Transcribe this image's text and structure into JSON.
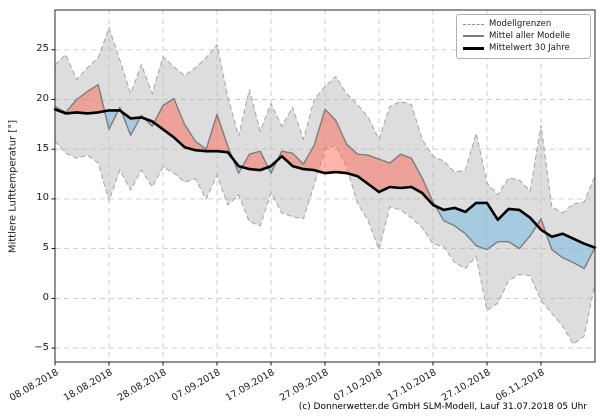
{
  "caption": "(c) Donnerwetter.de GmbH SLM-Modell, Lauf 31.07.2018 05 Uhr",
  "chart_data": {
    "type": "line",
    "title": "",
    "xlabel": "",
    "ylabel": "Mittlere Lufttemperatur [°]",
    "ylim": [
      -6.4,
      29.0
    ],
    "yticks": [
      -5,
      0,
      5,
      10,
      15,
      20,
      25
    ],
    "grid": true,
    "x_range_days": [
      0,
      100
    ],
    "x_ticks": [
      {
        "day": 0,
        "label": "08.08.2018"
      },
      {
        "day": 10,
        "label": "18.08.2018"
      },
      {
        "day": 20,
        "label": "28.08.2018"
      },
      {
        "day": 30,
        "label": "07.09.2018"
      },
      {
        "day": 40,
        "label": "17.09.2018"
      },
      {
        "day": 50,
        "label": "27.09.2018"
      },
      {
        "day": 60,
        "label": "07.10.2018"
      },
      {
        "day": 70,
        "label": "17.10.2018"
      },
      {
        "day": 80,
        "label": "27.10.2018"
      },
      {
        "day": 90,
        "label": "06.11.2018"
      }
    ],
    "days": [
      0,
      2,
      4,
      6,
      8,
      10,
      12,
      14,
      16,
      18,
      20,
      22,
      24,
      26,
      28,
      30,
      32,
      34,
      36,
      38,
      40,
      42,
      44,
      46,
      48,
      50,
      52,
      54,
      56,
      58,
      60,
      62,
      64,
      66,
      68,
      70,
      72,
      74,
      76,
      78,
      80,
      82,
      84,
      86,
      88,
      90,
      92,
      94,
      96,
      98,
      100
    ],
    "series": [
      {
        "name": "Modellgrenzen (obere Grenze)",
        "role": "upper",
        "style": "dashed",
        "values": [
          23.5,
          24.5,
          22.0,
          23.2,
          24.2,
          27.2,
          24.0,
          20.6,
          23.5,
          20.6,
          24.3,
          23.3,
          22.4,
          23.2,
          24.2,
          25.5,
          20.3,
          16.3,
          21.0,
          16.8,
          19.6,
          17.3,
          19.2,
          16.0,
          20.0,
          21.3,
          22.3,
          20.6,
          19.5,
          18.2,
          16.0,
          19.3,
          19.8,
          19.5,
          16.0,
          14.3,
          13.8,
          12.7,
          12.9,
          16.6,
          11.6,
          10.4,
          12.1,
          11.9,
          10.8,
          17.4,
          9.2,
          8.6,
          9.5,
          9.7,
          12.3
        ]
      },
      {
        "name": "Modellgrenzen (untere Grenze)",
        "role": "lower",
        "style": "dashed",
        "values": [
          15.8,
          14.6,
          14.1,
          14.4,
          13.6,
          9.8,
          12.9,
          10.9,
          12.9,
          11.2,
          13.2,
          12.6,
          11.7,
          12.0,
          10.0,
          12.4,
          9.4,
          10.4,
          7.7,
          7.3,
          10.6,
          8.6,
          8.2,
          8.0,
          11.4,
          15.0,
          15.4,
          13.2,
          9.6,
          7.8,
          4.9,
          9.2,
          8.9,
          8.1,
          7.1,
          5.5,
          5.2,
          3.6,
          3.0,
          4.2,
          -1.2,
          -0.5,
          1.8,
          2.4,
          2.3,
          -0.2,
          -1.5,
          -2.8,
          -4.6,
          -3.8,
          1.5
        ]
      },
      {
        "name": "Mittel aller Modelle",
        "role": "mean",
        "style": "solid",
        "values": [
          19.3,
          18.7,
          20.0,
          20.8,
          21.5,
          17.0,
          19.2,
          16.4,
          18.4,
          17.3,
          19.4,
          20.1,
          17.5,
          15.8,
          15.0,
          18.5,
          15.3,
          12.6,
          14.5,
          14.8,
          12.6,
          14.8,
          14.6,
          13.5,
          15.4,
          19.0,
          17.9,
          15.5,
          14.5,
          14.4,
          14.0,
          13.6,
          14.5,
          14.1,
          12.1,
          9.7,
          7.8,
          7.3,
          6.5,
          5.3,
          4.9,
          5.7,
          5.7,
          5.0,
          6.3,
          8.0,
          4.9,
          4.1,
          3.6,
          3.0,
          5.1
        ]
      },
      {
        "name": "Mittelwert 30 Jahre",
        "role": "clim",
        "style": "solid-thick",
        "values": [
          19.0,
          18.6,
          18.7,
          18.6,
          18.7,
          18.9,
          18.9,
          18.1,
          18.2,
          17.8,
          17.0,
          16.2,
          15.2,
          14.9,
          14.8,
          14.8,
          14.7,
          13.3,
          13.0,
          12.9,
          13.3,
          14.3,
          13.3,
          13.0,
          12.9,
          12.6,
          12.7,
          12.6,
          12.3,
          11.5,
          10.7,
          11.2,
          11.1,
          11.2,
          10.6,
          9.4,
          8.9,
          9.1,
          8.7,
          9.6,
          9.6,
          7.9,
          9.0,
          8.9,
          8.1,
          6.9,
          6.2,
          6.5,
          6.0,
          5.5,
          5.1
        ]
      }
    ],
    "colors": {
      "band": "#b4b4b4",
      "band_opacity": 0.45,
      "warm_fill": "rgba(255,90,70,0.45)",
      "cold_fill": "rgba(120,185,225,0.55)",
      "bounds_line": "#a4a4a4",
      "mean_line": "#7d7d7d",
      "clim_line": "#000000",
      "grid": "#c9c9c9",
      "spine": "#262626"
    },
    "legend": {
      "position": "top-right",
      "entries": [
        {
          "label": "Modellgrenzen",
          "style": "dashed"
        },
        {
          "label": "Mittel aller Modelle",
          "style": "solid"
        },
        {
          "label": "Mittelwert 30 Jahre",
          "style": "thick"
        }
      ]
    }
  }
}
